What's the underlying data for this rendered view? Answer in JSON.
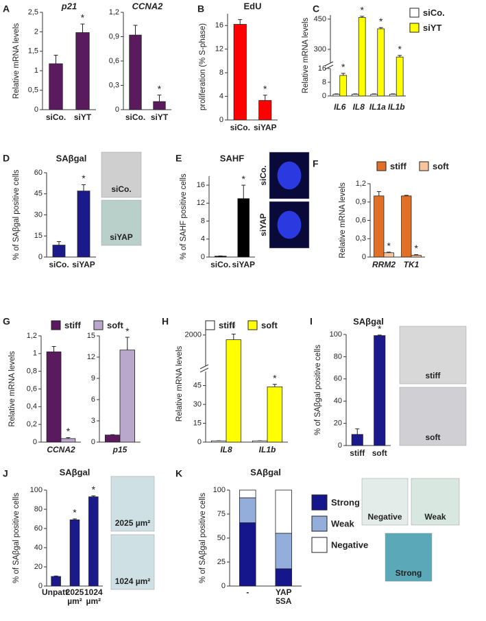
{
  "chart_data": [
    {
      "panel": "A",
      "type": "bar",
      "title": "p21",
      "ylabel": "Relative mRNA levels",
      "categories": [
        "siCo.",
        "siYT"
      ],
      "values": [
        1.18,
        1.98
      ],
      "errors": [
        0.22,
        0.22
      ],
      "color": "#5a1a5e",
      "ylim": [
        0,
        2.5
      ],
      "yticks": [
        0,
        {
          "value": 0.5,
          "label": "0,5"
        },
        1,
        {
          "value": 1.5,
          "label": "1,5"
        },
        2,
        {
          "value": 2.5,
          "label": "2,5"
        }
      ],
      "annotations": [
        {
          "text": "*",
          "at": "siYT"
        }
      ]
    },
    {
      "type": "bar",
      "title": "CCNA2",
      "categories": [
        "siCo.",
        "siYT"
      ],
      "values": [
        0.92,
        0.1
      ],
      "errors": [
        0.12,
        0.08
      ],
      "color": "#5a1a5e",
      "ylim": [
        0,
        1.2
      ],
      "yticks": [
        0,
        {
          "value": 0.3,
          "label": "0,3"
        },
        {
          "value": 0.6,
          "label": "0,6"
        },
        {
          "value": 0.9,
          "label": "0,9"
        },
        {
          "value": 1.2,
          "label": "1,2"
        }
      ],
      "annotations": [
        {
          "text": "*",
          "at": "siYT"
        }
      ]
    },
    {
      "panel": "B",
      "type": "bar",
      "title": "EdU",
      "ylabel": "proliferation (% S-phase)",
      "categories": [
        "siCo.",
        "siYAP"
      ],
      "values": [
        16.2,
        3.3
      ],
      "errors": [
        0.8,
        0.9
      ],
      "color": "#ff0000",
      "ylim": [
        0,
        18
      ],
      "yticks": [
        0,
        4,
        8,
        12,
        16
      ],
      "annotations": [
        {
          "text": "*",
          "at": "siYAP"
        }
      ]
    },
    {
      "panel": "C",
      "type": "bar",
      "ylabel": "Relative mRNA levels",
      "categories": [
        "IL6",
        "IL8",
        "IL1a",
        "IL1b"
      ],
      "series": [
        {
          "name": "siCo.",
          "color": "#ffffff",
          "values": [
            1,
            1,
            1,
            1
          ],
          "errors": [
            0.2,
            0.2,
            0.2,
            0.2
          ]
        },
        {
          "name": "siYT",
          "color": "#ffff00",
          "values": [
            12,
            458,
            402,
            262
          ],
          "errors": [
            1.2,
            6,
            6,
            8
          ]
        }
      ],
      "ylim": [
        [
          0,
          16
        ],
        [
          232,
          470
        ]
      ],
      "yticks": [
        0,
        8,
        16,
        300,
        450
      ],
      "annotations": [
        {
          "text": "*",
          "at": "IL6",
          "series": "siYT"
        },
        {
          "text": "*",
          "at": "IL8",
          "series": "siYT"
        },
        {
          "text": "*",
          "at": "IL1a",
          "series": "siYT"
        },
        {
          "text": "*",
          "at": "IL1b",
          "series": "siYT"
        }
      ]
    },
    {
      "panel": "D",
      "type": "bar",
      "title": "SAβgal",
      "ylabel": "% of SAβgal positive cells",
      "categories": [
        "siCo.",
        "siYAP"
      ],
      "values": [
        8.5,
        47
      ],
      "errors": [
        2.5,
        4.5
      ],
      "color": "#1a1a8a",
      "ylim": [
        0,
        60
      ],
      "yticks": [
        0,
        15,
        30,
        45,
        60
      ],
      "annotations": [
        {
          "text": "*",
          "at": "siYAP"
        }
      ],
      "images": [
        {
          "label": "siCo."
        },
        {
          "label": "siYAP"
        }
      ]
    },
    {
      "panel": "E",
      "type": "bar",
      "title": "SAHF",
      "ylabel": "% of SAHF positive cells",
      "categories": [
        "siCo.",
        "siYAP"
      ],
      "values": [
        0.2,
        13
      ],
      "errors": [
        0.05,
        3
      ],
      "color": "#000000",
      "ylim": [
        0,
        18
      ],
      "yticks": [
        0,
        4,
        8,
        12,
        16
      ],
      "annotations": [
        {
          "text": "*",
          "at": "siYAP"
        }
      ],
      "images": [
        {
          "label": "siCo."
        },
        {
          "label": "siYAP"
        }
      ]
    },
    {
      "panel": "F",
      "type": "bar",
      "ylabel": "Relative mRNA levels",
      "categories": [
        "RRM2",
        "TK1"
      ],
      "series": [
        {
          "name": "stiff",
          "color": "#e07028",
          "values": [
            1.0,
            1.0
          ],
          "errors": [
            0.07,
            0.01
          ]
        },
        {
          "name": "soft",
          "color": "#f8c49c",
          "values": [
            0.07,
            0.03
          ],
          "errors": [
            0.01,
            0.01
          ]
        }
      ],
      "ylim": [
        0,
        1.2
      ],
      "yticks": [
        0,
        {
          "value": 0.3,
          "label": "0,3"
        },
        {
          "value": 0.6,
          "label": "0,6"
        },
        {
          "value": 0.9,
          "label": "0,9"
        },
        {
          "value": 1.2,
          "label": "1,2"
        }
      ],
      "annotations": [
        {
          "text": "*",
          "at": "RRM2",
          "series": "soft"
        },
        {
          "text": "*",
          "at": "TK1",
          "series": "soft"
        }
      ]
    },
    {
      "panel": "G",
      "type": "bar",
      "ylabel": "Relative mRNA levels",
      "categories": [
        "CCNA2"
      ],
      "series": [
        {
          "name": "stiff",
          "color": "#5a1a5e",
          "values": [
            1.02
          ],
          "errors": [
            0.06
          ]
        },
        {
          "name": "soft",
          "color": "#b9a8cb",
          "values": [
            0.04
          ],
          "errors": [
            0.01
          ]
        }
      ],
      "ylim": [
        0,
        1.2
      ],
      "yticks": [
        0,
        {
          "value": 0.2,
          "label": "0,2"
        },
        {
          "value": 0.4,
          "label": "0,4"
        },
        {
          "value": 0.6,
          "label": "0,6"
        },
        {
          "value": 0.8,
          "label": "0,8"
        },
        1,
        {
          "value": 1.2,
          "label": "1,2"
        }
      ],
      "annotations": [
        {
          "text": "*",
          "at": "CCNA2",
          "series": "soft"
        }
      ]
    },
    {
      "type": "bar",
      "categories": [
        "p15"
      ],
      "series": [
        {
          "color": "#5a1a5e",
          "values": [
            1
          ],
          "errors": [
            0.05
          ]
        },
        {
          "color": "#b9a8cb",
          "values": [
            13
          ],
          "errors": [
            1.8
          ]
        }
      ],
      "ylim": [
        0,
        15
      ],
      "yticks": [
        0,
        3,
        6,
        9,
        12,
        15
      ],
      "annotations": [
        {
          "text": "*",
          "at": "p15"
        }
      ]
    },
    {
      "panel": "H",
      "type": "bar",
      "ylabel": "Relative mRNA levels",
      "categories": [
        "IL8",
        "IL1b"
      ],
      "series": [
        {
          "name": "stiff",
          "color": "#ffffff",
          "values": [
            1,
            1
          ],
          "errors": [
            0.1,
            0.1
          ]
        },
        {
          "name": "soft",
          "color": "#ffff00",
          "values": [
            1950,
            44
          ],
          "errors": [
            60,
            2
          ]
        }
      ],
      "ylim": [
        [
          0,
          54
        ],
        [
          1700,
          2100
        ]
      ],
      "yticks": [
        0,
        15,
        30,
        45,
        2000
      ],
      "annotations": [
        {
          "text": "*",
          "at": "IL8",
          "series": "soft"
        },
        {
          "text": "*",
          "at": "IL1b",
          "series": "soft"
        }
      ]
    },
    {
      "panel": "I",
      "type": "bar",
      "title": "SAβgal",
      "ylabel": "% of SAβgal positive cells",
      "categories": [
        "stiff",
        "soft"
      ],
      "values": [
        10,
        99
      ],
      "errors": [
        5,
        0.5
      ],
      "color": "#1a1a8a",
      "ylim": [
        0,
        100
      ],
      "yticks": [
        0,
        20,
        40,
        60,
        80,
        100
      ],
      "annotations": [
        {
          "text": "*",
          "at": "soft"
        }
      ],
      "images": [
        {
          "label": "stiff"
        },
        {
          "label": "soft"
        }
      ]
    },
    {
      "panel": "J",
      "type": "bar",
      "title": "SAβgal",
      "ylabel": "% of SAβgal positive cells",
      "categories": [
        "Unpatt.",
        "2025 µm²",
        "1024 µm²"
      ],
      "values": [
        10,
        69,
        93
      ],
      "errors": [
        0.5,
        1,
        1
      ],
      "color": "#1a1a8a",
      "ylim": [
        0,
        100
      ],
      "yticks": [
        0,
        20,
        40,
        60,
        80,
        100
      ],
      "annotations": [
        {
          "text": "*",
          "at": "2025 µm²"
        },
        {
          "text": "*",
          "at": "1024 µm²"
        }
      ],
      "images": [
        {
          "label": "2025 µm²"
        },
        {
          "label": "1024 µm²"
        }
      ]
    },
    {
      "panel": "K",
      "type": "bar",
      "stacked": true,
      "title": "SAβgal",
      "ylabel": "% of SAβgal positive cells",
      "categories": [
        "-",
        "YAP 5SA"
      ],
      "series": [
        {
          "name": "Strong",
          "color": "#16168c",
          "values": [
            66,
            18
          ]
        },
        {
          "name": "Weak",
          "color": "#93aedb",
          "values": [
            26,
            37
          ]
        },
        {
          "name": "Negative",
          "color": "#ffffff",
          "values": [
            8,
            45
          ]
        }
      ],
      "ylim": [
        0,
        100
      ],
      "yticks": [
        0,
        25,
        50,
        75,
        100
      ],
      "images": [
        {
          "label": "Negative"
        },
        {
          "label": "Weak"
        },
        {
          "label": "Strong"
        }
      ]
    }
  ]
}
